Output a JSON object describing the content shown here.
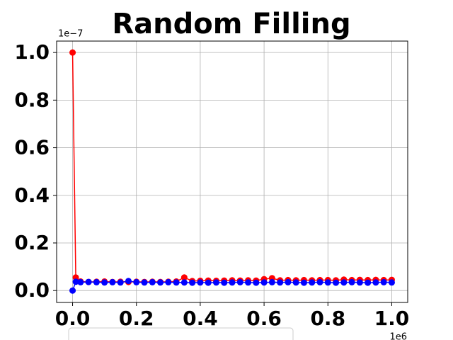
{
  "chart_data": {
    "type": "line",
    "title": "Random Filling",
    "y_offset_label": "1e−7",
    "x_offset_label": "1e6",
    "x": [
      0,
      0.01,
      0.025,
      0.05,
      0.075,
      0.1,
      0.125,
      0.15,
      0.175,
      0.2,
      0.225,
      0.25,
      0.275,
      0.3,
      0.325,
      0.35,
      0.375,
      0.4,
      0.425,
      0.45,
      0.475,
      0.5,
      0.525,
      0.55,
      0.575,
      0.6,
      0.625,
      0.65,
      0.675,
      0.7,
      0.725,
      0.75,
      0.775,
      0.8,
      0.825,
      0.85,
      0.875,
      0.9,
      0.925,
      0.95,
      0.975,
      1.0
    ],
    "series": [
      {
        "color": "#ff0000",
        "values": [
          1.0,
          0.055,
          0.038,
          0.036,
          0.037,
          0.038,
          0.036,
          0.037,
          0.036,
          0.037,
          0.036,
          0.037,
          0.036,
          0.037,
          0.038,
          0.055,
          0.04,
          0.041,
          0.042,
          0.041,
          0.042,
          0.043,
          0.042,
          0.043,
          0.042,
          0.048,
          0.052,
          0.043,
          0.044,
          0.043,
          0.044,
          0.043,
          0.044,
          0.044,
          0.043,
          0.046,
          0.044,
          0.045,
          0.044,
          0.045,
          0.044,
          0.045
        ]
      },
      {
        "color": "#0000ff",
        "values": [
          0.0,
          0.037,
          0.035,
          0.036,
          0.035,
          0.034,
          0.035,
          0.034,
          0.04,
          0.035,
          0.034,
          0.035,
          0.034,
          0.035,
          0.034,
          0.034,
          0.033,
          0.034,
          0.033,
          0.034,
          0.033,
          0.034,
          0.035,
          0.034,
          0.033,
          0.034,
          0.035,
          0.034,
          0.035,
          0.034,
          0.033,
          0.034,
          0.035,
          0.034,
          0.033,
          0.034,
          0.035,
          0.034,
          0.033,
          0.034,
          0.035,
          0.034
        ]
      }
    ],
    "xlim": [
      -0.05,
      1.05
    ],
    "ylim": [
      -0.05,
      1.048
    ],
    "xticks": [
      {
        "value": 0,
        "label": "0.0"
      },
      0.2,
      0.4,
      0.6,
      0.8,
      {
        "value": 1,
        "label": "1.0"
      }
    ],
    "yticks": [
      {
        "value": 0,
        "label": "0.0"
      },
      0.2,
      0.4,
      0.6,
      0.8,
      {
        "value": 1,
        "label": "1.0"
      }
    ],
    "grid": true
  }
}
